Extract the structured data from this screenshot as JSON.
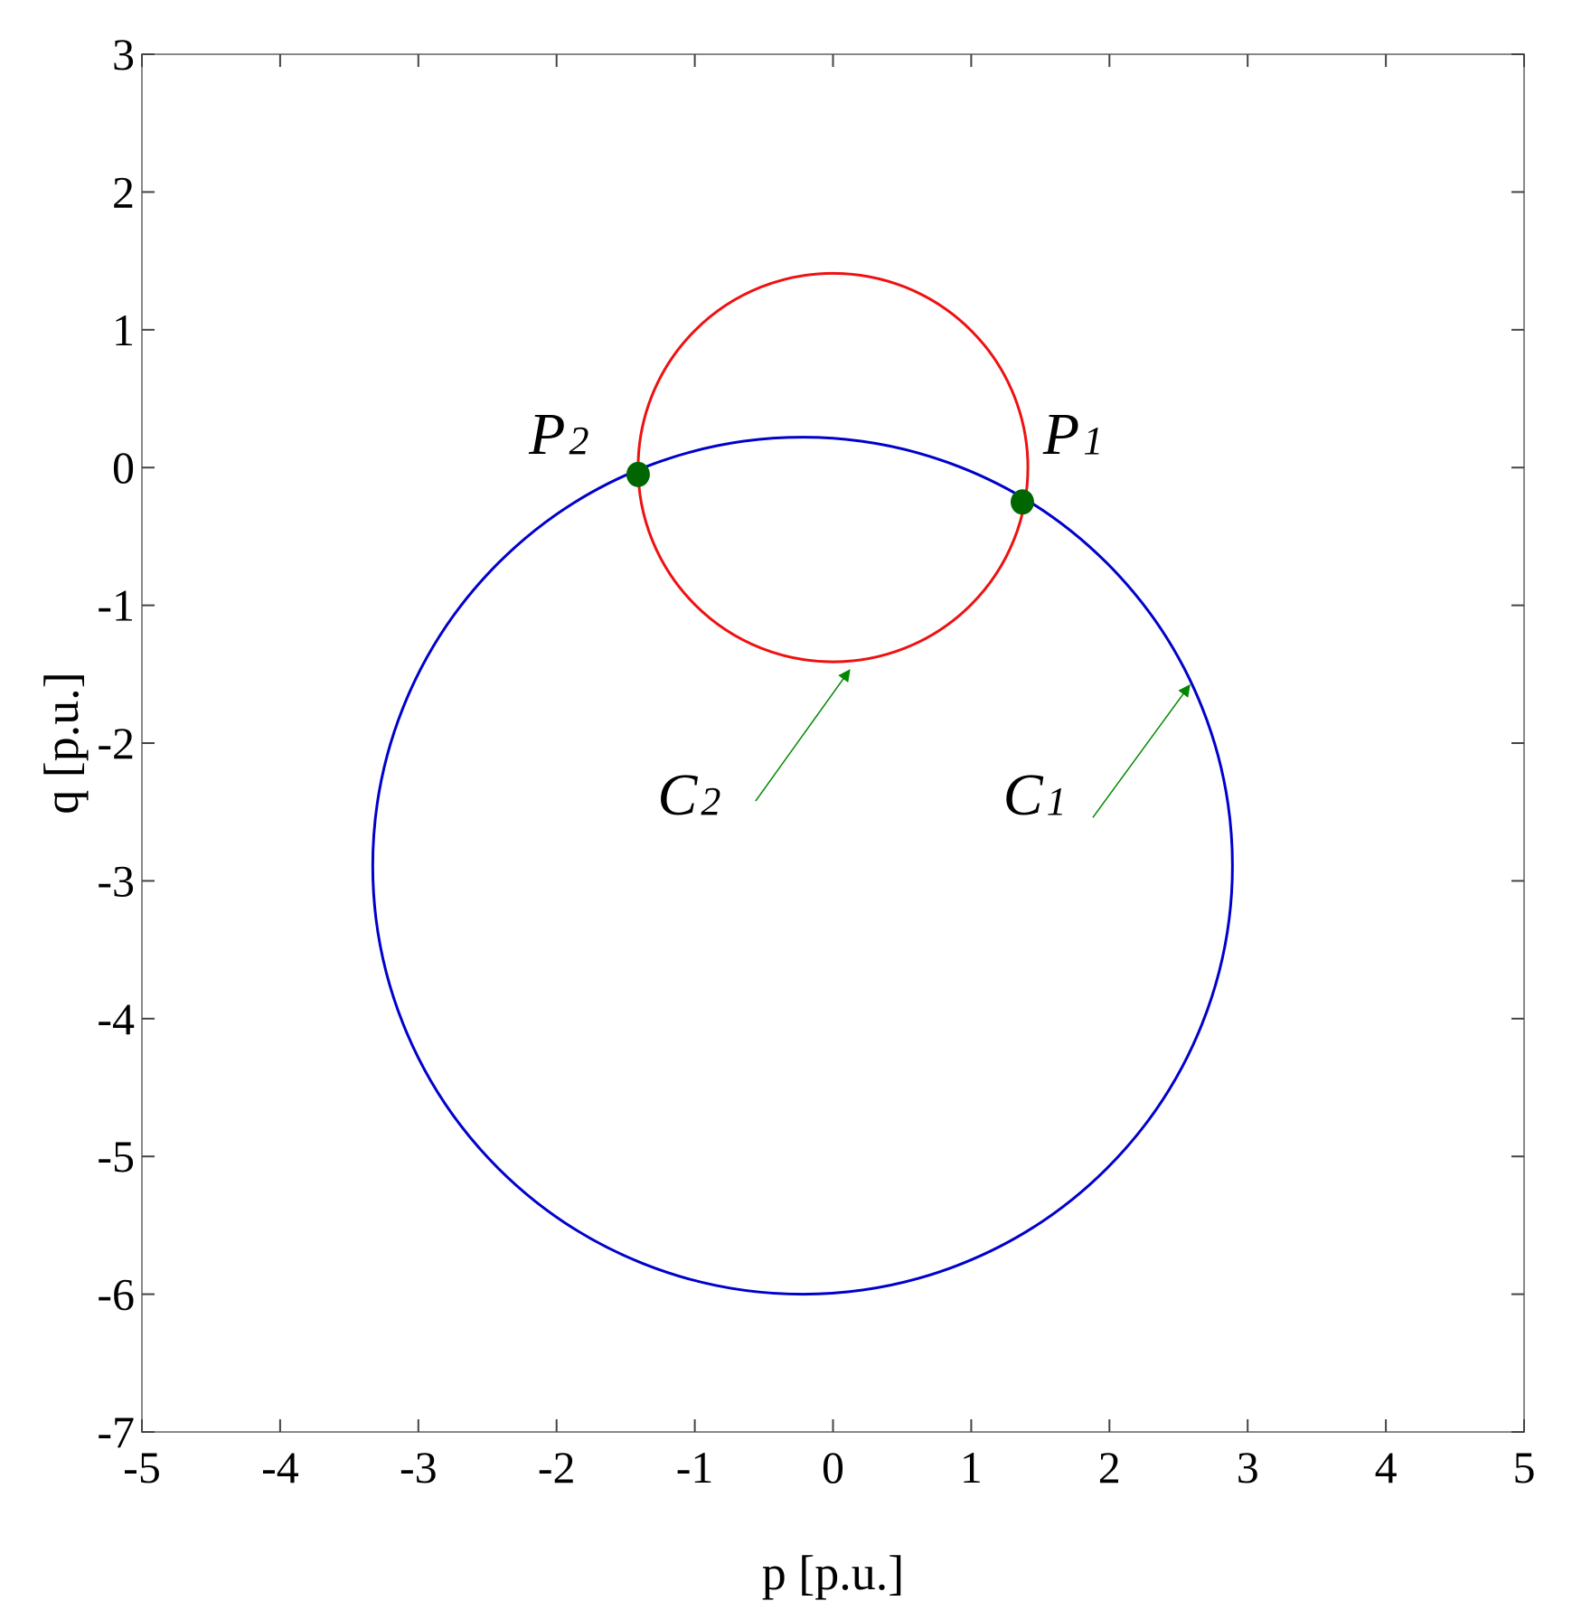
{
  "chart_data": {
    "type": "line",
    "xlabel": "p [p.u.]",
    "ylabel": "q [p.u.]",
    "xlim": [
      -5,
      5
    ],
    "ylim": [
      -7,
      3
    ],
    "xticks": [
      -5,
      -4,
      -3,
      -2,
      -1,
      0,
      1,
      2,
      3,
      4,
      5
    ],
    "yticks": [
      -7,
      -6,
      -5,
      -4,
      -3,
      -2,
      -1,
      0,
      1,
      2,
      3
    ],
    "grid": false,
    "series": [
      {
        "name": "C1",
        "shape": "circle",
        "center": [
          -0.22,
          -2.89
        ],
        "radius": 3.11,
        "color": "#0000cc"
      },
      {
        "name": "C2",
        "shape": "circle",
        "center": [
          0.0,
          0.0
        ],
        "radius": 1.41,
        "color": "#ee1111"
      }
    ],
    "points": [
      {
        "name": "P1",
        "x": 1.37,
        "y": -0.25,
        "color": "#006600"
      },
      {
        "name": "P2",
        "x": -1.41,
        "y": -0.05,
        "color": "#006600"
      }
    ],
    "annotations": [
      {
        "main": "P",
        "sub": "1",
        "text_at": [
          1.52,
          0.1
        ]
      },
      {
        "main": "P",
        "sub": "2",
        "text_at": [
          -2.2,
          0.1
        ]
      },
      {
        "main": "C",
        "sub": "2",
        "text_at": [
          -1.27,
          -2.52
        ],
        "arrow_from": [
          -0.56,
          -2.42
        ],
        "arrow_to": [
          0.12,
          -1.47
        ],
        "arrow_color": "#008800"
      },
      {
        "main": "C",
        "sub": "1",
        "text_at": [
          1.23,
          -2.52
        ],
        "arrow_from": [
          1.88,
          -2.54
        ],
        "arrow_to": [
          2.58,
          -1.58
        ],
        "arrow_color": "#008800"
      }
    ]
  }
}
